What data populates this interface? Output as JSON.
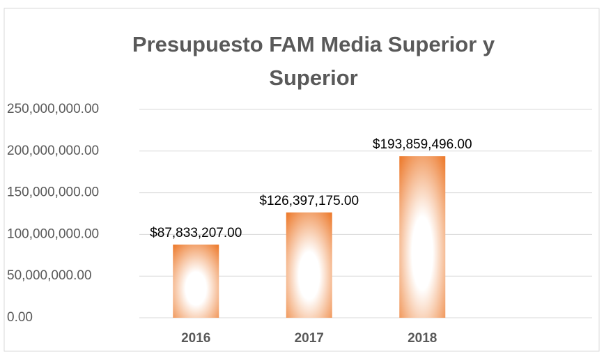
{
  "chart_data": {
    "type": "bar",
    "title": "Presupuesto FAM Media Superior y Superior",
    "categories": [
      "2016",
      "2017",
      "2018",
      null
    ],
    "values": [
      87833207,
      126397175,
      193859496,
      null
    ],
    "value_labels": [
      "$87,833,207.00",
      "$126,397,175.00",
      "$193,859,496.00",
      null
    ],
    "color": "#ED7D31",
    "ylim": [
      0,
      250000000
    ],
    "yticks": [
      {
        "value": 0,
        "label": "0.00"
      },
      {
        "value": 50000000,
        "label": "50,000,000.00"
      },
      {
        "value": 100000000,
        "label": "100,000,000.00"
      },
      {
        "value": 150000000,
        "label": "150,000,000.00"
      },
      {
        "value": 200000000,
        "label": "200,000,000.00"
      },
      {
        "value": 250000000,
        "label": "250,000,000.00"
      }
    ],
    "grid": true
  }
}
